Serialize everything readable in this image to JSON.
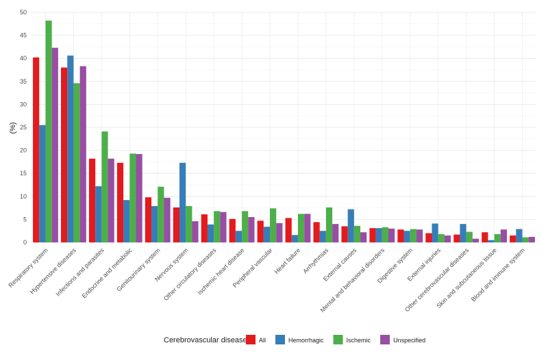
{
  "chart_data": {
    "type": "bar",
    "title": "",
    "xlabel": "",
    "ylabel": "(%)",
    "ylim": [
      0,
      50
    ],
    "yticks": [
      0,
      5,
      10,
      15,
      20,
      25,
      30,
      35,
      40,
      45,
      50
    ],
    "grid": true,
    "legend_position": "bottom",
    "legend_title": "Cerebrovascular disease",
    "categories": [
      "Respiratory system",
      "Hypertensive diseases",
      "Infections and parasites",
      "Endocrine and metabolic",
      "Genitourinary system",
      "Nervous system",
      "Other circulatory diseases",
      "Ischemic heart disease",
      "Peripheral vascular",
      "Heart failure",
      "Arrhythmias",
      "External causes",
      "Mental and behavioral disorders",
      "Digestive system",
      "External injuries",
      "Other cerebrovascular diseases",
      "Skin and subcutaneous tissue",
      "Blood and immune system"
    ],
    "series": [
      {
        "name": "All",
        "color": "#e41a1c",
        "values": [
          40.2,
          38.0,
          18.2,
          17.3,
          9.8,
          7.6,
          6.1,
          5.1,
          4.7,
          5.3,
          4.4,
          3.5,
          3.1,
          2.8,
          2.0,
          1.7,
          2.2,
          1.5
        ]
      },
      {
        "name": "Hemorrhagic",
        "color": "#377eb8",
        "values": [
          25.5,
          40.6,
          12.2,
          9.2,
          7.9,
          17.3,
          3.9,
          2.5,
          3.4,
          1.6,
          2.5,
          7.2,
          3.1,
          2.5,
          4.1,
          4.0,
          0.5,
          2.9
        ]
      },
      {
        "name": "Ischemic",
        "color": "#4daf4a",
        "values": [
          48.2,
          34.6,
          24.1,
          19.3,
          12.1,
          7.9,
          6.8,
          6.8,
          7.4,
          6.2,
          7.6,
          3.6,
          3.3,
          2.9,
          1.8,
          2.3,
          1.8,
          1.1
        ]
      },
      {
        "name": "Unspecified",
        "color": "#984ea3",
        "values": [
          42.3,
          38.3,
          18.2,
          19.2,
          9.7,
          4.6,
          6.6,
          5.5,
          4.2,
          6.2,
          4.0,
          2.2,
          3.0,
          2.8,
          1.5,
          0.8,
          2.8,
          1.2
        ]
      }
    ]
  }
}
